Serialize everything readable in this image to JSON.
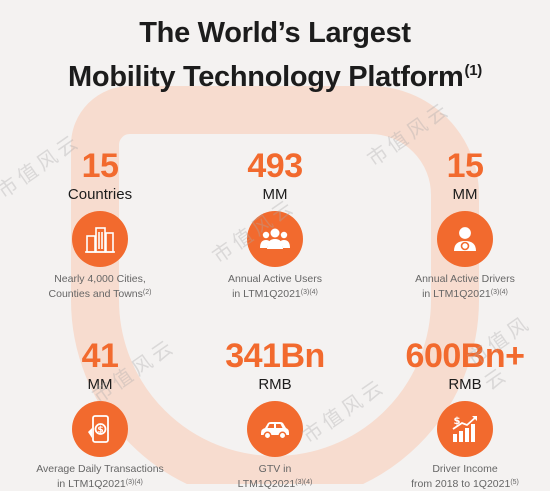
{
  "title": {
    "line1": "The World’s Largest",
    "line2": "Mobility Technology Platform",
    "note": "(1)"
  },
  "stats": [
    {
      "value": "15",
      "unit": "Countries",
      "icon": "city-buildings-icon",
      "desc_line1": "Nearly 4,000 Cities,",
      "desc_line2": "Counties and Towns",
      "desc_note": "(2)"
    },
    {
      "value": "493",
      "unit": "MM",
      "icon": "users-group-icon",
      "desc_line1": "Annual Active Users",
      "desc_line2": "in LTM1Q2021",
      "desc_note": "(3)(4)"
    },
    {
      "value": "15",
      "unit": "MM",
      "icon": "driver-icon",
      "desc_line1": "Annual Active Drivers",
      "desc_line2": "in LTM1Q2021",
      "desc_note": "(3)(4)"
    },
    {
      "value": "41",
      "unit": "MM",
      "icon": "phone-payment-icon",
      "desc_line1": "Average Daily Transactions",
      "desc_line2": "in  LTM1Q2021",
      "desc_note": "(3)(4)"
    },
    {
      "value": "341Bn",
      "unit": "RMB",
      "icon": "car-icon",
      "desc_line1": "GTV in",
      "desc_line2": "LTM1Q2021",
      "desc_note": "(3)(4)"
    },
    {
      "value": "600Bn+",
      "unit": "RMB",
      "icon": "income-growth-icon",
      "desc_line1": "Driver Income",
      "desc_line2": "from 2018 to 1Q2021",
      "desc_note": "(5)"
    }
  ],
  "watermark": "市值风云",
  "colors": {
    "accent": "#f26a2e",
    "arc": "#f7d9cb",
    "background": "#f4f2f1"
  }
}
